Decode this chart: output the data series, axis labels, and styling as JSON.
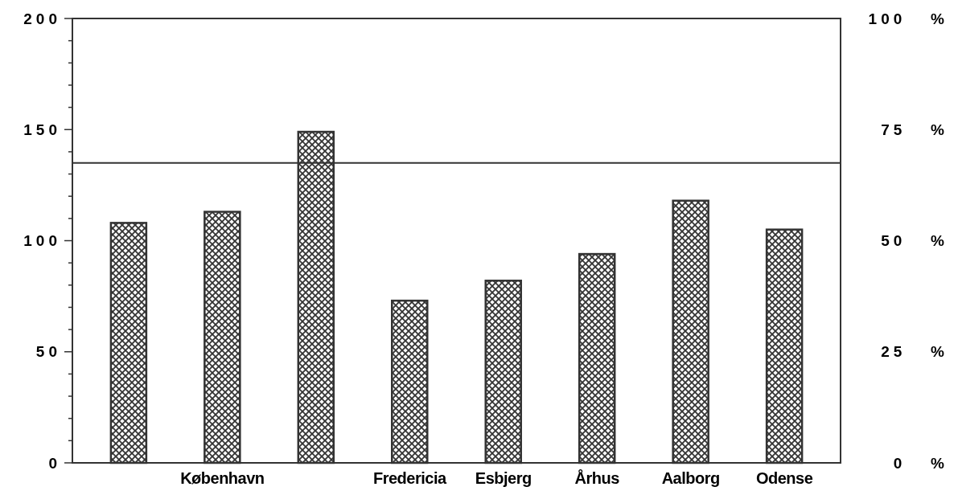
{
  "chart_data": {
    "type": "bar",
    "categories": [
      null,
      "København",
      null,
      "Fredericia",
      "Esbjerg",
      "Århus",
      "Aalborg",
      "Odense"
    ],
    "values": [
      108,
      113,
      149,
      73,
      82,
      94,
      118,
      105
    ],
    "color": "#333333",
    "ylim": [
      0,
      200
    ],
    "yticks": [
      0,
      {
        "value": 10,
        "label": null
      },
      {
        "value": 20,
        "label": null
      },
      {
        "value": 30,
        "label": null
      },
      {
        "value": 40,
        "label": null
      },
      50,
      {
        "value": 60,
        "label": null
      },
      {
        "value": 70,
        "label": null
      },
      {
        "value": 80,
        "label": null
      },
      {
        "value": 90,
        "label": null
      },
      100,
      {
        "value": 110,
        "label": null
      },
      {
        "value": 120,
        "label": null
      },
      {
        "value": 130,
        "label": null
      },
      {
        "value": 140,
        "label": null
      },
      150,
      {
        "value": 160,
        "label": null
      },
      {
        "value": 170,
        "label": null
      },
      {
        "value": 180,
        "label": null
      },
      {
        "value": 190,
        "label": null
      },
      200
    ],
    "y2lim": [
      0,
      100
    ],
    "y2ticks": [
      {
        "value": 0,
        "label": "0 %"
      },
      {
        "value": 25,
        "label": "25 %"
      },
      {
        "value": 50,
        "label": "50 %"
      },
      {
        "value": 75,
        "label": "75 %"
      },
      {
        "value": 100,
        "label": "100 %"
      }
    ],
    "ref_lines": [
      {
        "axis": "y",
        "value": 135
      }
    ]
  }
}
